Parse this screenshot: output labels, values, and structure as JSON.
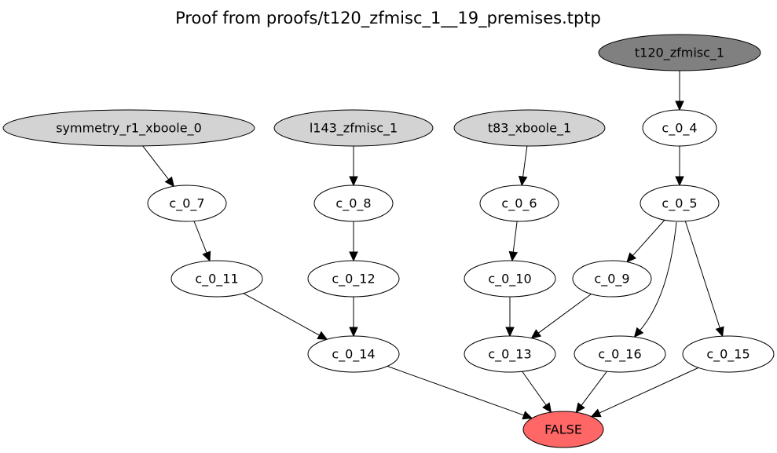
{
  "title": "Proof from proofs/t120_zfmisc_1__19_premises.tptp",
  "colors": {
    "conjecture": "#808080",
    "axiom": "#d3d3d3",
    "clause": "#ffffff",
    "false": "#ff6666"
  },
  "nodes": [
    {
      "id": "t120_zfmisc_1",
      "label": "t120_zfmisc_1",
      "kind": "conjecture"
    },
    {
      "id": "symmetry_r1_xboole_0",
      "label": "symmetry_r1_xboole_0",
      "kind": "axiom"
    },
    {
      "id": "l143_zfmisc_1",
      "label": "l143_zfmisc_1",
      "kind": "axiom"
    },
    {
      "id": "t83_xboole_1",
      "label": "t83_xboole_1",
      "kind": "axiom"
    },
    {
      "id": "c_0_4",
      "label": "c_0_4",
      "kind": "clause"
    },
    {
      "id": "c_0_7",
      "label": "c_0_7",
      "kind": "clause"
    },
    {
      "id": "c_0_8",
      "label": "c_0_8",
      "kind": "clause"
    },
    {
      "id": "c_0_6",
      "label": "c_0_6",
      "kind": "clause"
    },
    {
      "id": "c_0_5",
      "label": "c_0_5",
      "kind": "clause"
    },
    {
      "id": "c_0_11",
      "label": "c_0_11",
      "kind": "clause"
    },
    {
      "id": "c_0_12",
      "label": "c_0_12",
      "kind": "clause"
    },
    {
      "id": "c_0_10",
      "label": "c_0_10",
      "kind": "clause"
    },
    {
      "id": "c_0_9",
      "label": "c_0_9",
      "kind": "clause"
    },
    {
      "id": "c_0_14",
      "label": "c_0_14",
      "kind": "clause"
    },
    {
      "id": "c_0_13",
      "label": "c_0_13",
      "kind": "clause"
    },
    {
      "id": "c_0_16",
      "label": "c_0_16",
      "kind": "clause"
    },
    {
      "id": "c_0_15",
      "label": "c_0_15",
      "kind": "clause"
    },
    {
      "id": "FALSE",
      "label": "FALSE",
      "kind": "false"
    }
  ],
  "edges": [
    [
      "t120_zfmisc_1",
      "c_0_4"
    ],
    [
      "c_0_4",
      "c_0_5"
    ],
    [
      "symmetry_r1_xboole_0",
      "c_0_7"
    ],
    [
      "l143_zfmisc_1",
      "c_0_8"
    ],
    [
      "t83_xboole_1",
      "c_0_6"
    ],
    [
      "c_0_7",
      "c_0_11"
    ],
    [
      "c_0_8",
      "c_0_12"
    ],
    [
      "c_0_6",
      "c_0_10"
    ],
    [
      "c_0_5",
      "c_0_9"
    ],
    [
      "c_0_5",
      "c_0_16"
    ],
    [
      "c_0_5",
      "c_0_15"
    ],
    [
      "c_0_11",
      "c_0_14"
    ],
    [
      "c_0_12",
      "c_0_14"
    ],
    [
      "c_0_10",
      "c_0_13"
    ],
    [
      "c_0_9",
      "c_0_13"
    ],
    [
      "c_0_14",
      "FALSE"
    ],
    [
      "c_0_13",
      "FALSE"
    ],
    [
      "c_0_16",
      "FALSE"
    ],
    [
      "c_0_15",
      "FALSE"
    ]
  ]
}
